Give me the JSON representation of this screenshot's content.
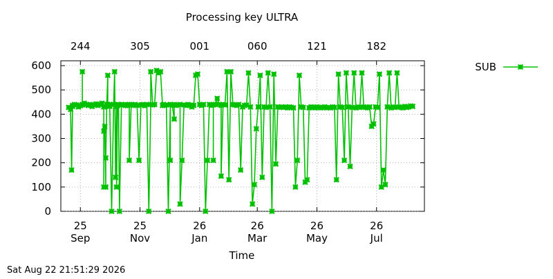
{
  "chart_data": {
    "type": "line",
    "title": "Processing key ULTRA",
    "xlabel": "Time",
    "ylabel": "",
    "ylim": [
      0,
      620
    ],
    "xlim": [
      -20,
      352
    ],
    "yticks": [
      0,
      100,
      200,
      300,
      400,
      500,
      600
    ],
    "x_bottom_ticks": [
      {
        "x": 0,
        "line1": "25",
        "line2": "Sep"
      },
      {
        "x": 61,
        "line1": "25",
        "line2": "Nov"
      },
      {
        "x": 122,
        "line1": "26",
        "line2": "Jan"
      },
      {
        "x": 181,
        "line1": "26",
        "line2": "Mar"
      },
      {
        "x": 242,
        "line1": "26",
        "line2": "May"
      },
      {
        "x": 303,
        "line1": "26",
        "line2": "Jul"
      }
    ],
    "x_top_ticks": [
      {
        "x": 0,
        "label": "244"
      },
      {
        "x": 61,
        "label": "305"
      },
      {
        "x": 122,
        "label": "001"
      },
      {
        "x": 181,
        "label": "060"
      },
      {
        "x": 242,
        "label": "121"
      },
      {
        "x": 303,
        "label": "182"
      }
    ],
    "legend_position": "right",
    "line_color": "#00c000",
    "series": [
      {
        "name": "SUB",
        "x": [
          -12,
          -10,
          -9,
          -8,
          -8,
          -6,
          -4,
          -2,
          0,
          2,
          2,
          2,
          4,
          6,
          8,
          10,
          12,
          14,
          16,
          18,
          20,
          22,
          24,
          24,
          24,
          25,
          26,
          26,
          27,
          28,
          28,
          28,
          30,
          30,
          30,
          32,
          34,
          35,
          36,
          37,
          37,
          38,
          39,
          40,
          42,
          44,
          46,
          46,
          48,
          50,
          50,
          52,
          52,
          54,
          56,
          58,
          60,
          62,
          64,
          66,
          68,
          70,
          72,
          72,
          74,
          76,
          78,
          80,
          82,
          84,
          85,
          86,
          88,
          90,
          92,
          92,
          92,
          94,
          96,
          96,
          98,
          100,
          102,
          102,
          104,
          106,
          108,
          110,
          112,
          114,
          114,
          116,
          118,
          120,
          122,
          124,
          126,
          128,
          130,
          132,
          134,
          136,
          136,
          136,
          138,
          140,
          142,
          144,
          144,
          146,
          148,
          150,
          152,
          154,
          156,
          158,
          160,
          162,
          164,
          166,
          168,
          170,
          172,
          174,
          176,
          178,
          180,
          182,
          182,
          184,
          186,
          188,
          190,
          192,
          194,
          196,
          198,
          200,
          202,
          204,
          206,
          208,
          210,
          212,
          212,
          214,
          216,
          218,
          220,
          222,
          224,
          226,
          228,
          230,
          232,
          234,
          236,
          238,
          240,
          242,
          244,
          246,
          248,
          250,
          252,
          254,
          256,
          258,
          260,
          262,
          264,
          266,
          268,
          270,
          272,
          274,
          276,
          278,
          280,
          282,
          284,
          286,
          288,
          290,
          292,
          294,
          296,
          298,
          300,
          302,
          304,
          306,
          308,
          310,
          312,
          314,
          316,
          318,
          320,
          322,
          324,
          326,
          328,
          330,
          332,
          334,
          336,
          338,
          340
        ],
        "y": [
          428,
          420,
          170,
          432,
          436,
          440,
          438,
          430,
          435,
          440,
          575,
          438,
          445,
          440,
          436,
          440,
          432,
          438,
          442,
          436,
          440,
          445,
          430,
          100,
          330,
          350,
          100,
          220,
          440,
          560,
          440,
          436,
          432,
          440,
          438,
          0,
          440,
          575,
          140,
          430,
          100,
          436,
          440,
          0,
          440,
          438,
          436,
          440,
          435,
          440,
          210,
          438,
          440,
          436,
          440,
          436,
          210,
          438,
          440,
          435,
          440,
          0,
          440,
          575,
          438,
          440,
          580,
          570,
          575,
          436,
          440,
          436,
          438,
          0,
          440,
          210,
          440,
          436,
          380,
          440,
          436,
          438,
          440,
          30,
          210,
          438,
          436,
          440,
          436,
          438,
          430,
          436,
          560,
          565,
          440,
          436,
          440,
          0,
          210,
          440,
          436,
          438,
          210,
          440,
          440,
          465,
          440,
          436,
          145,
          440,
          438,
          575,
          130,
          575,
          440,
          438,
          436,
          440,
          170,
          430,
          436,
          438,
          570,
          430,
          30,
          110,
          340,
          430,
          430,
          560,
          140,
          430,
          428,
          570,
          430,
          0,
          565,
          195,
          430,
          428,
          430,
          428,
          430,
          428,
          426,
          430,
          428,
          426,
          100,
          210,
          560,
          430,
          428,
          120,
          130,
          426,
          430,
          428,
          426,
          430,
          428,
          426,
          428,
          430,
          426,
          428,
          426,
          430,
          428,
          130,
          565,
          430,
          428,
          210,
          570,
          430,
          185,
          428,
          570,
          426,
          430,
          428,
          570,
          430,
          428,
          426,
          430,
          350,
          360,
          430,
          428,
          565,
          100,
          170,
          110,
          430,
          570,
          426,
          430,
          428,
          570,
          430,
          428,
          426,
          432,
          428,
          430,
          434,
          432
        ]
      }
    ]
  },
  "footer": {
    "timestamp": "Sat Aug 22 21:51:29 2026"
  }
}
